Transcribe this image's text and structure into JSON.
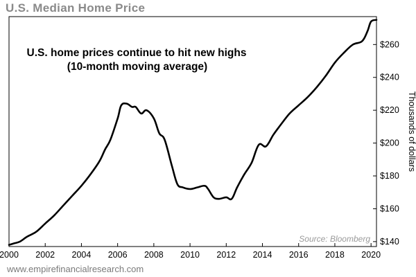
{
  "header": {
    "title": "U.S. Median Home Price"
  },
  "footer": {
    "website": "www.empirefinancialresearch.com"
  },
  "chart_data": {
    "type": "line",
    "title": "U.S. Median Home Price",
    "annotation_lines": [
      "U.S. home prices continue to hit new highs",
      "(10-month moving average)"
    ],
    "xlabel": "",
    "ylabel": "Thousands of dollars",
    "source": "Source: Bloomberg",
    "xlim": [
      2000,
      2020.3
    ],
    "ylim": [
      137,
      277
    ],
    "x_ticks": [
      2000,
      2002,
      2004,
      2006,
      2008,
      2010,
      2012,
      2014,
      2016,
      2018,
      2020
    ],
    "y_ticks": [
      140,
      160,
      180,
      200,
      220,
      240,
      260
    ],
    "y_tick_labels": [
      "$140",
      "$160",
      "$180",
      "$200",
      "$220",
      "$240",
      "$260"
    ],
    "grid": false,
    "series": [
      {
        "x": [
          2000.0,
          2000.3,
          2000.6,
          2001.0,
          2001.5,
          2002.0,
          2002.5,
          2003.0,
          2003.5,
          2004.0,
          2004.5,
          2005.0,
          2005.3,
          2005.6,
          2006.0,
          2006.2,
          2006.5,
          2006.8,
          2007.0,
          2007.3,
          2007.6,
          2008.0,
          2008.3,
          2008.6,
          2009.0,
          2009.3,
          2009.6,
          2010.0,
          2010.4,
          2010.8,
          2011.0,
          2011.3,
          2011.6,
          2012.0,
          2012.3,
          2012.6,
          2013.0,
          2013.4,
          2013.8,
          2014.2,
          2014.6,
          2015.0,
          2015.5,
          2016.0,
          2016.5,
          2017.0,
          2017.5,
          2018.0,
          2018.5,
          2019.0,
          2019.5,
          2019.8,
          2020.0,
          2020.3
        ],
        "y": [
          138,
          139,
          140,
          143,
          146,
          151,
          156,
          162,
          168,
          174,
          181,
          189,
          196,
          202,
          215,
          223,
          224,
          222,
          222,
          218,
          220,
          215,
          206,
          202,
          186,
          175,
          173,
          172,
          173,
          174,
          172,
          167,
          166,
          167,
          166,
          173,
          181,
          188,
          199,
          198,
          205,
          211,
          218,
          223,
          228,
          234,
          241,
          249,
          255,
          260,
          262,
          268,
          274,
          275
        ]
      }
    ]
  }
}
